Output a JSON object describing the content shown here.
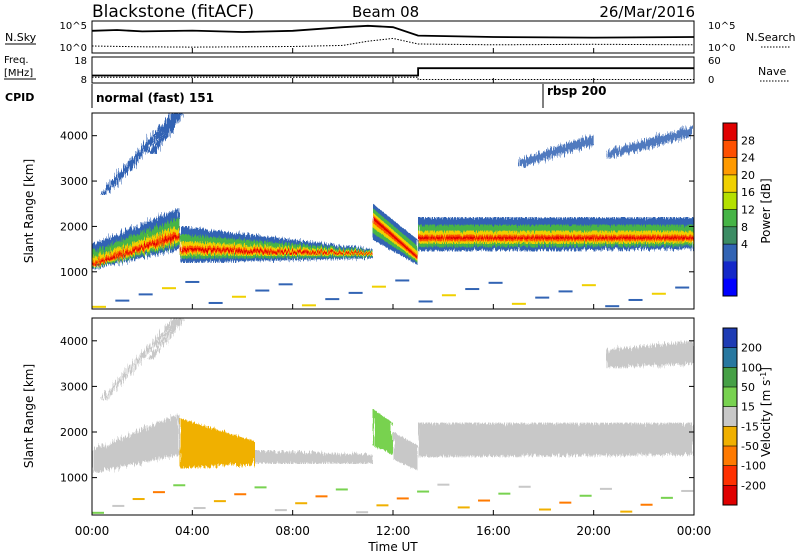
{
  "header": {
    "station": "Blackstone (fitACF)",
    "beam": "Beam 08",
    "date": "26/Mar/2016"
  },
  "noise_panel": {
    "left_label": "N.Sky",
    "left_ticks": [
      "10^5",
      "10^0"
    ],
    "right_ticks": [
      "10^5",
      "10^0"
    ],
    "right_label": "N.Search"
  },
  "freq_panel": {
    "left_label_1": "Freq.",
    "left_label_2": "[MHz]",
    "left_ticks": [
      "18",
      "8"
    ],
    "right_ticks": [
      "60",
      "0"
    ],
    "right_label": "Nave"
  },
  "cpid_panel": {
    "label": "CPID",
    "segments": [
      {
        "name": "normal (fast) 151",
        "start": "00:00",
        "end": "18:00"
      },
      {
        "name": "rbsp 200",
        "start": "18:00",
        "end": "24:00"
      }
    ]
  },
  "power_colorbar": {
    "label": "Power [dB]",
    "ticks": [
      "28",
      "24",
      "20",
      "16",
      "12",
      "8",
      "4"
    ],
    "colors": [
      "#e00000",
      "#ff5000",
      "#ff9a00",
      "#f0d000",
      "#b4e000",
      "#46b446",
      "#3c8c64",
      "#3264b4",
      "#1428c8",
      "#0000ff"
    ]
  },
  "velocity_colorbar": {
    "label_main": "Velocity [m s",
    "label_sup": "-1",
    "label_end": "]",
    "ticks": [
      "200",
      "100",
      "50",
      "15",
      "-15",
      "-50",
      "-100",
      "-200"
    ],
    "colors": [
      "#1e3cb4",
      "#2878a0",
      "#46a046",
      "#78d250",
      "#c8c8c8",
      "#f0b000",
      "#ff7a00",
      "#ff3000",
      "#e00000"
    ]
  },
  "chart_data": {
    "type": "heatmap",
    "xlabel": "Time UT",
    "x_ticks": [
      "00:00",
      "04:00",
      "08:00",
      "12:00",
      "16:00",
      "20:00",
      "00:00"
    ],
    "xlim_hours": [
      0,
      24
    ],
    "panels": [
      {
        "name": "power",
        "ylabel": "Slant Range [km]",
        "y_ticks": [
          1000,
          2000,
          3000,
          4000
        ],
        "ylim": [
          180,
          4500
        ],
        "bands": [
          {
            "x": [
              0,
              3.5
            ],
            "lower": [
              1050,
              1500
            ],
            "upper": [
              1600,
              2400
            ],
            "core": [
              1150,
              1800
            ]
          },
          {
            "x": [
              3.5,
              11.2
            ],
            "lower": [
              1200,
              1300
            ],
            "upper": [
              2000,
              1500
            ],
            "core": [
              1500,
              1400
            ]
          },
          {
            "x": [
              11.2,
              13.0
            ],
            "lower": [
              1700,
              1150
            ],
            "upper": [
              2500,
              1700
            ],
            "core": [
              2200,
              1300
            ]
          },
          {
            "x": [
              13.0,
              24
            ],
            "lower": [
              1450,
              1500
            ],
            "upper": [
              2200,
              2200
            ],
            "core": [
              1750,
              1750
            ]
          }
        ],
        "streaks": [
          {
            "x": [
              0.3,
              3.5
            ],
            "y": [
              2700,
              4500
            ]
          },
          {
            "x": [
              2.2,
              3.7
            ],
            "y": [
              3600,
              4500
            ]
          }
        ],
        "patches": [
          {
            "x": [
              20.5,
              24
            ],
            "y": [
              3400,
              4000
            ]
          },
          {
            "x": [
              17,
              20
            ],
            "y": [
              3200,
              3800
            ]
          }
        ]
      },
      {
        "name": "velocity",
        "ylabel": "Slant Range [km]",
        "y_ticks": [
          1000,
          2000,
          3000,
          4000
        ],
        "ylim": [
          180,
          4500
        ],
        "regions": [
          {
            "x": [
              0,
              3.5
            ],
            "y_low": [
              1100,
              1500
            ],
            "y_high": [
              1600,
              2400
            ],
            "category": "-15..15"
          },
          {
            "x": [
              3.5,
              6.5
            ],
            "y_low": [
              1200,
              1300
            ],
            "y_high": [
              2300,
              1800
            ],
            "category": "-15..-50"
          },
          {
            "x": [
              6.5,
              11.2
            ],
            "y_low": [
              1300,
              1300
            ],
            "y_high": [
              1600,
              1500
            ],
            "category": "-15..15"
          },
          {
            "x": [
              11.2,
              12.0
            ],
            "y_low": [
              1700,
              1500
            ],
            "y_high": [
              2500,
              2200
            ],
            "category": "15..50"
          },
          {
            "x": [
              12.0,
              13.0
            ],
            "y_low": [
              1400,
              1150
            ],
            "y_high": [
              2000,
              1700
            ],
            "category": "-15..15"
          },
          {
            "x": [
              13.0,
              24
            ],
            "y_low": [
              1450,
              1500
            ],
            "y_high": [
              2200,
              2200
            ],
            "category": "-15..15"
          },
          {
            "x": [
              20.5,
              24
            ],
            "y_low": [
              3400,
              3500
            ],
            "y_high": [
              3800,
              4000
            ],
            "category": "-15..15"
          }
        ]
      }
    ],
    "noise_sky": {
      "x": [
        0,
        1,
        2,
        4,
        6,
        8,
        10,
        11,
        12,
        13,
        16,
        20,
        24
      ],
      "level": [
        0.72,
        0.75,
        0.7,
        0.73,
        0.68,
        0.72,
        0.85,
        0.9,
        0.85,
        0.55,
        0.5,
        0.48,
        0.5
      ]
    },
    "noise_search": {
      "x": [
        0,
        2,
        4,
        6,
        8,
        10,
        11,
        12,
        13,
        16,
        20,
        24
      ],
      "level": [
        0.18,
        0.15,
        0.14,
        0.15,
        0.16,
        0.2,
        0.35,
        0.45,
        0.25,
        0.22,
        0.24,
        0.22
      ]
    },
    "frequency_mhz": {
      "x": [
        0,
        13,
        13,
        24
      ],
      "y": [
        10.5,
        10.5,
        13.8,
        13.8
      ]
    },
    "nave": {
      "x": [
        0,
        13,
        13,
        24
      ],
      "y": [
        10,
        10,
        4,
        4
      ]
    }
  }
}
